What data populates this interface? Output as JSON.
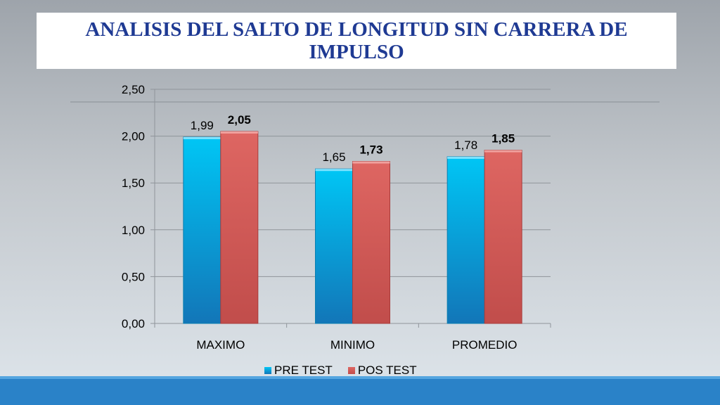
{
  "title": "ANALISIS DEL SALTO  DE LONGITUD SIN CARRERA DE IMPULSO",
  "colors": {
    "pre": "#14b4e6",
    "pos": "#d45a58",
    "title": "#1f3a93",
    "bar_band": "#2a82c8"
  },
  "chart_data": {
    "type": "bar",
    "title": "ANALISIS DEL SALTO  DE LONGITUD SIN CARRERA DE IMPULSO",
    "categories": [
      "MAXIMO",
      "MINIMO",
      "PROMEDIO"
    ],
    "series": [
      {
        "name": "PRE TEST",
        "values": [
          1.99,
          1.65,
          1.78
        ],
        "labels": [
          "1,99",
          "1,65",
          "1,78"
        ]
      },
      {
        "name": "POS TEST",
        "values": [
          2.05,
          1.73,
          1.85
        ],
        "labels": [
          "2,05",
          "1,73",
          "1,85"
        ]
      }
    ],
    "yticks": [
      "0,00",
      "0,50",
      "1,00",
      "1,50",
      "2,00",
      "2,50"
    ],
    "ylim": [
      0,
      2.5
    ],
    "xlabel": "",
    "ylabel": "",
    "grid": true,
    "legend": "bottom"
  }
}
